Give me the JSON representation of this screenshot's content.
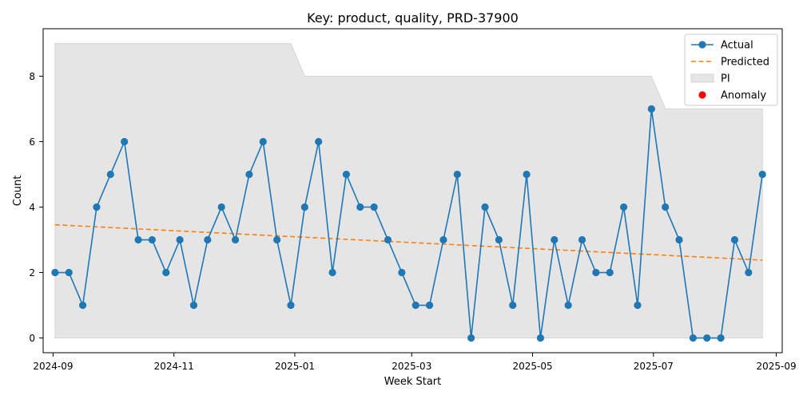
{
  "chart_data": {
    "type": "line",
    "title": "Key: product, quality, PRD-37900",
    "xlabel": "Week Start",
    "ylabel": "Count",
    "x_ticks": [
      "2024-09",
      "2024-11",
      "2025-01",
      "2025-03",
      "2025-05",
      "2025-07",
      "2025-09"
    ],
    "y_ticks": [
      0,
      2,
      4,
      6,
      8
    ],
    "ylim": [
      -0.45,
      9.45
    ],
    "xlim": [
      "2024-08-27",
      "2025-09-04"
    ],
    "grid": false,
    "legend_position": "top-right",
    "x": [
      "2024-09-02",
      "2024-09-09",
      "2024-09-16",
      "2024-09-23",
      "2024-09-30",
      "2024-10-07",
      "2024-10-14",
      "2024-10-21",
      "2024-10-28",
      "2024-11-04",
      "2024-11-11",
      "2024-11-18",
      "2024-11-25",
      "2024-12-02",
      "2024-12-09",
      "2024-12-16",
      "2024-12-23",
      "2024-12-30",
      "2025-01-06",
      "2025-01-13",
      "2025-01-20",
      "2025-01-27",
      "2025-02-03",
      "2025-02-10",
      "2025-02-17",
      "2025-02-24",
      "2025-03-03",
      "2025-03-10",
      "2025-03-17",
      "2025-03-24",
      "2025-03-31",
      "2025-04-07",
      "2025-04-14",
      "2025-04-21",
      "2025-04-28",
      "2025-05-05",
      "2025-05-12",
      "2025-05-19",
      "2025-05-26",
      "2025-06-02",
      "2025-06-09",
      "2025-06-16",
      "2025-06-23",
      "2025-06-30",
      "2025-07-07",
      "2025-07-14",
      "2025-07-21",
      "2025-07-28",
      "2025-08-04",
      "2025-08-11",
      "2025-08-18",
      "2025-08-25"
    ],
    "series": [
      {
        "name": "Actual",
        "color": "#1f77b4",
        "marker": "circle",
        "values": [
          2,
          2,
          1,
          4,
          5,
          6,
          3,
          3,
          2,
          3,
          1,
          3,
          4,
          3,
          5,
          6,
          3,
          1,
          4,
          6,
          2,
          5,
          4,
          4,
          3,
          2,
          1,
          1,
          3,
          5,
          0,
          4,
          3,
          1,
          5,
          0,
          3,
          1,
          3,
          2,
          2,
          4,
          1,
          7,
          4,
          3,
          0,
          0,
          0,
          3,
          2,
          5
        ]
      },
      {
        "name": "Predicted",
        "color": "#ff7f0e",
        "style": "dashed",
        "start": 3.46,
        "end": 2.38
      },
      {
        "name": "PI",
        "type": "area",
        "color": "#e5e5e5",
        "lower": 0,
        "upper_steps": [
          {
            "from": "2024-09-02",
            "to": "2024-12-30",
            "value": 9
          },
          {
            "from": "2025-01-06",
            "to": "2025-06-30",
            "value": 8
          },
          {
            "from": "2025-07-07",
            "to": "2025-08-25",
            "value": 7
          }
        ]
      },
      {
        "name": "Anomaly",
        "type": "scatter",
        "color": "#ff0000",
        "points": []
      }
    ]
  }
}
